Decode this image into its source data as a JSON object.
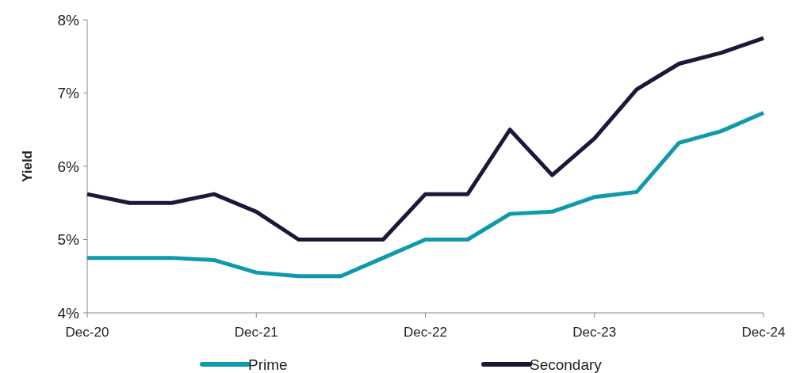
{
  "chart_data": {
    "type": "line",
    "ylabel": "Yield",
    "categories": [
      "Dec-20",
      null,
      null,
      null,
      "Dec-21",
      null,
      null,
      null,
      "Dec-22",
      null,
      null,
      null,
      "Dec-23",
      null,
      null,
      null,
      "Dec-24"
    ],
    "series": [
      {
        "name": "Prime",
        "color": "#0e9aaa",
        "values": [
          4.75,
          4.75,
          4.75,
          4.72,
          4.55,
          4.5,
          4.5,
          4.75,
          5.0,
          5.0,
          5.35,
          5.38,
          5.58,
          5.65,
          6.32,
          6.48,
          6.73
        ]
      },
      {
        "name": "Secondary",
        "color": "#1b1838",
        "values": [
          5.62,
          5.5,
          5.5,
          5.62,
          5.38,
          5.0,
          5.0,
          5.0,
          5.62,
          5.62,
          6.5,
          5.88,
          6.38,
          7.05,
          7.4,
          7.55,
          7.75
        ]
      }
    ],
    "ylim": [
      4,
      8
    ],
    "yticks": [
      {
        "value": 4,
        "label": "4%"
      },
      {
        "value": 5,
        "label": "5%"
      },
      {
        "value": 6,
        "label": "6%"
      },
      {
        "value": 7,
        "label": "7%"
      },
      {
        "value": 8,
        "label": "8%"
      }
    ],
    "grid": false,
    "legend": "bottom",
    "marker": "none",
    "line_style": "solid"
  }
}
